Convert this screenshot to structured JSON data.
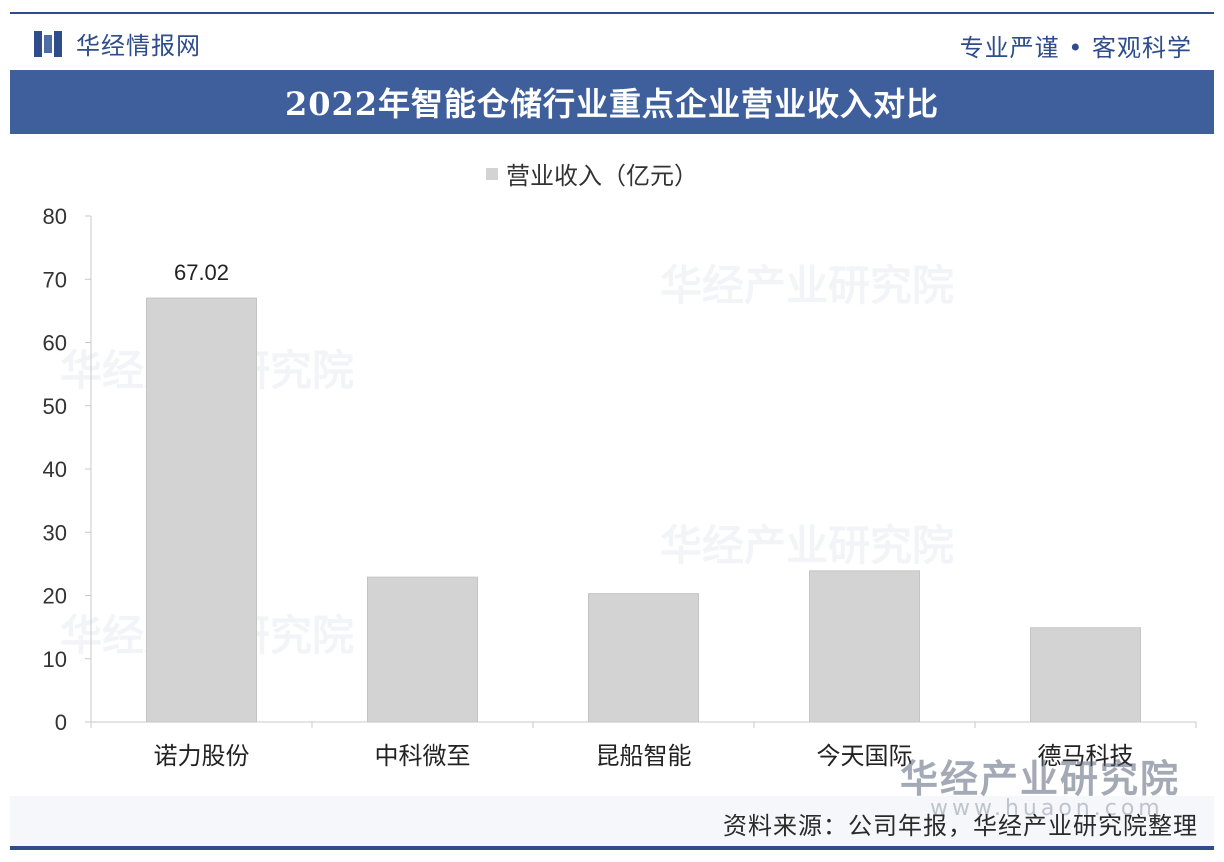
{
  "header": {
    "brand": "华经情报网",
    "motto": "专业严谨 • 客观科学"
  },
  "watermark": {
    "text": "华经产业研究院",
    "url": "www.huaon.com"
  },
  "chart_data": {
    "type": "bar",
    "title": "2022年智能仓储行业重点企业营业收入对比",
    "legend": [
      "营业收入（亿元）"
    ],
    "categories": [
      "诺力股份",
      "中科微至",
      "昆船智能",
      "今天国际",
      "德马科技"
    ],
    "series": [
      {
        "name": "营业收入（亿元）",
        "values": [
          67.02,
          22.9,
          20.3,
          23.9,
          14.9
        ],
        "color": "#d3d3d3"
      }
    ],
    "data_labels": [
      "67.02",
      "",
      "",
      "",
      ""
    ],
    "yticks": [
      "0",
      "10",
      "20",
      "30",
      "40",
      "50",
      "60",
      "70",
      "80"
    ],
    "ylim": [
      0,
      80
    ],
    "grid": false,
    "legend_position": "top-center"
  },
  "footer": {
    "source": "资料来源：公司年报，华经产业研究院整理"
  }
}
